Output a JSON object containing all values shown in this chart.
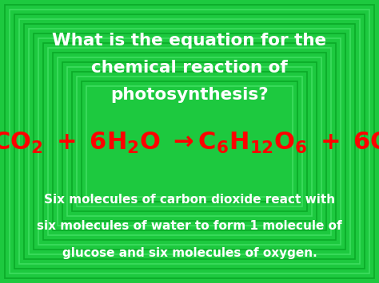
{
  "bg_color": "#1dc93f",
  "title_line1": "What is the equation for the",
  "title_line2": "chemical reaction of",
  "title_line3": "photosynthesis?",
  "title_color": "#ffffff",
  "title_fontsize": 15.5,
  "title_bold": true,
  "equation_color": "#ff0000",
  "equation_fontsize": 22,
  "desc_line1": "Six molecules of carbon dioxide react with",
  "desc_line2": "six molecules of water to form 1 molecule of",
  "desc_line3": "glucose and six molecules of oxygen.",
  "desc_color": "#ffffff",
  "desc_fontsize": 11,
  "num_borders": 18,
  "border_light_color": "#3ddd5f",
  "border_dark_color": "#0aaa28"
}
